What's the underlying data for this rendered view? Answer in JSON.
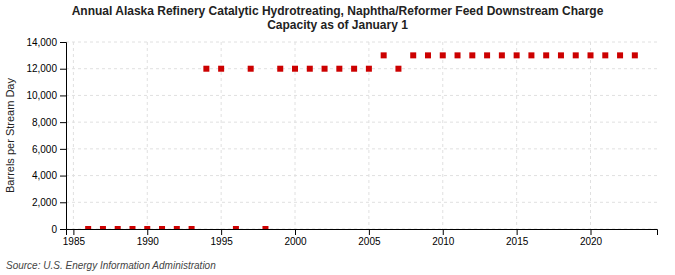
{
  "chart_data": {
    "type": "scatter",
    "title": "Annual Alaska Refinery Catalytic Hydrotreating, Naphtha/Reformer Feed Downstream Charge\nCapacity as of January 1",
    "ylabel": "Barrels per Stream Day",
    "annotations": [
      "Source: U.S. Energy Information Administration"
    ],
    "color": "#cc0000",
    "marker": "square",
    "x": [
      1986,
      1987,
      1988,
      1989,
      1990,
      1991,
      1992,
      1993,
      1994,
      1995,
      1996,
      1997,
      1998,
      1999,
      2000,
      2001,
      2002,
      2003,
      2004,
      2005,
      2006,
      2007,
      2008,
      2009,
      2010,
      2011,
      2012,
      2013,
      2014,
      2015,
      2016,
      2017,
      2018,
      2019,
      2020,
      2021,
      2022,
      2023
    ],
    "values": [
      0,
      0,
      0,
      0,
      0,
      0,
      0,
      0,
      12000,
      12000,
      0,
      12000,
      0,
      12000,
      12000,
      12000,
      12000,
      12000,
      12000,
      12000,
      13000,
      12000,
      13000,
      13000,
      13000,
      13000,
      13000,
      13000,
      13000,
      13000,
      13000,
      13000,
      13000,
      13000,
      13000,
      13000,
      13000,
      13000
    ],
    "xlim": [
      1984.5,
      2024.5
    ],
    "ylim": [
      0,
      14000
    ],
    "xticks": [
      1985,
      1990,
      1995,
      2000,
      2005,
      2010,
      2015,
      2020
    ],
    "yticks": [
      0,
      {
        "value": 2000,
        "label": "2,000"
      },
      {
        "value": 4000,
        "label": "4,000"
      },
      {
        "value": 6000,
        "label": "6,000"
      },
      {
        "value": 8000,
        "label": "8,000"
      },
      {
        "value": 10000,
        "label": "10,000"
      },
      {
        "value": 12000,
        "label": "12,000"
      },
      {
        "value": 14000,
        "label": "14,000"
      }
    ],
    "grid": true
  }
}
